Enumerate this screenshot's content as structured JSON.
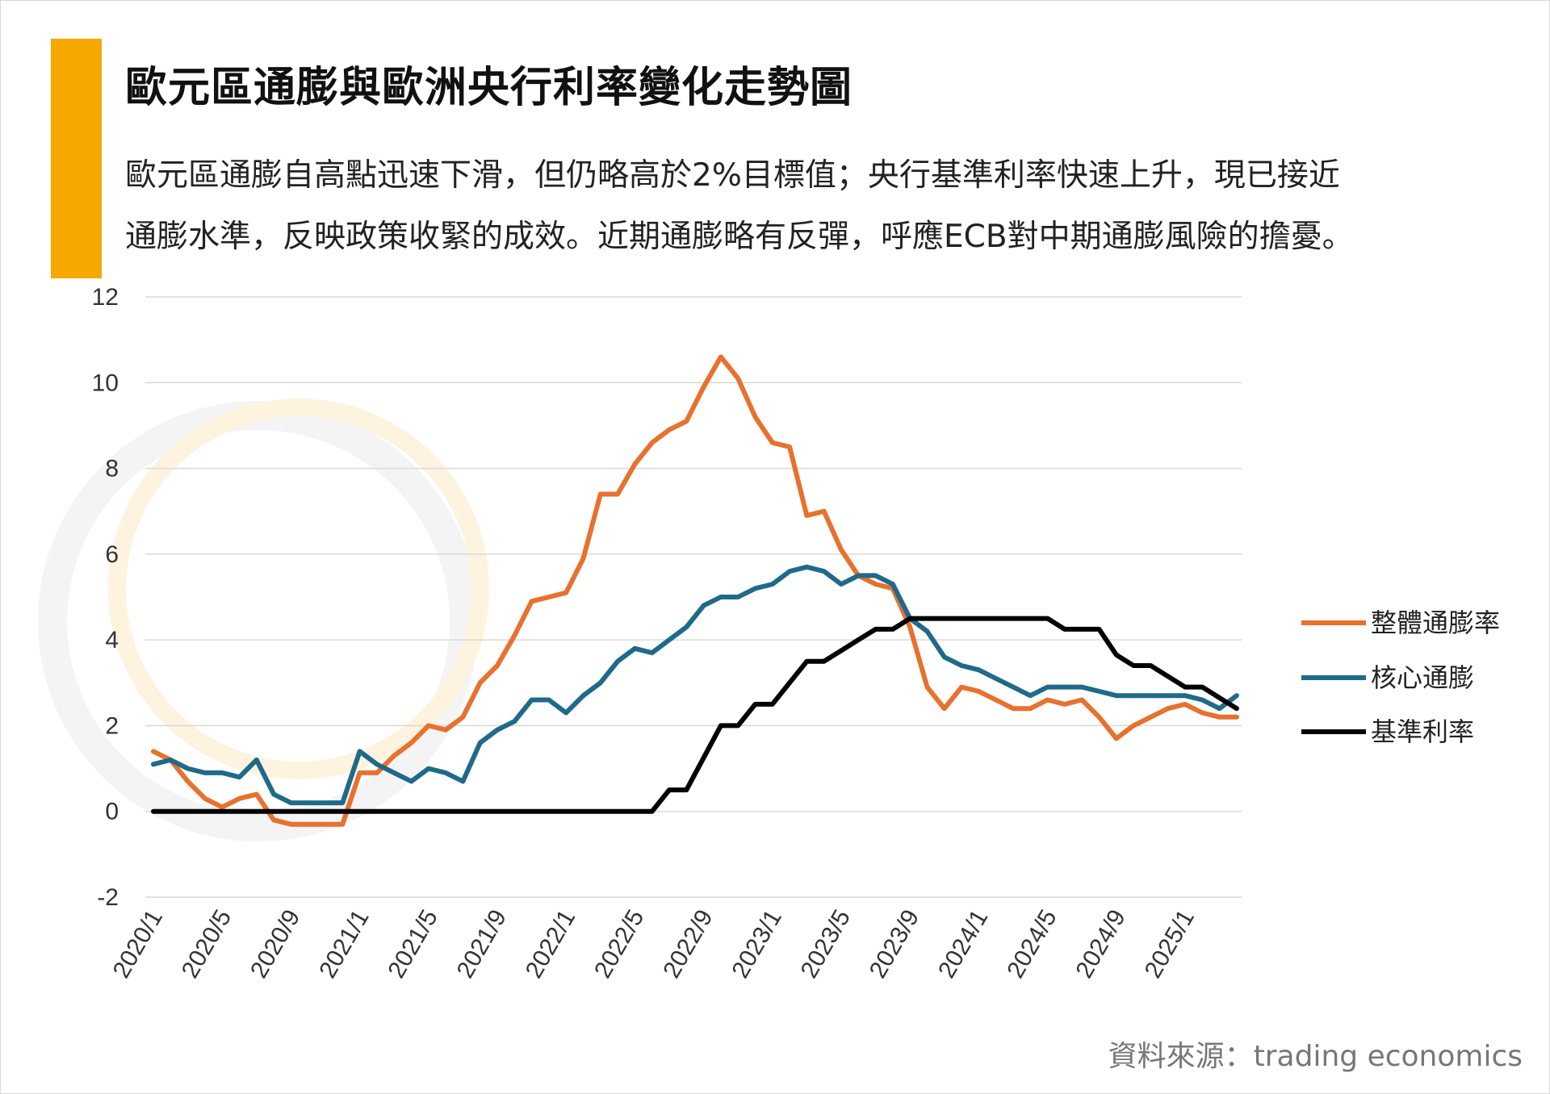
{
  "header": {
    "title": "歐元區通膨與歐洲央行利率變化走勢圖",
    "subtitle_line1": "歐元區通膨自高點迅速下滑，但仍略高於2%目標值；央行基準利率快速上升，現已接近",
    "subtitle_line2": "通膨水準，反映政策收緊的成效。近期通膨略有反彈，呼應ECB對中期通膨風險的擔憂。"
  },
  "source": "資料來源：trading economics",
  "colors": {
    "accent": "#F7A800",
    "headline": "#E8712D",
    "core": "#1F6A8A",
    "rate": "#000000",
    "grid": "#d9d9d9"
  },
  "chart_data": {
    "type": "line",
    "ylim": [
      -2,
      12
    ],
    "yticks": [
      -2,
      0,
      2,
      4,
      6,
      8,
      10,
      12
    ],
    "grid": true,
    "legend_position": "right",
    "x_tick_labels": [
      "2020/1",
      "2020/5",
      "2020/9",
      "2021/1",
      "2021/5",
      "2021/9",
      "2022/1",
      "2022/5",
      "2022/9",
      "2023/1",
      "2023/5",
      "2023/9",
      "2024/1",
      "2024/5",
      "2024/9",
      "2025/1"
    ],
    "x_start": "2020/1",
    "x_end": "2025/6",
    "series": [
      {
        "name": "整體通膨率",
        "color": "#E8712D",
        "values": [
          1.4,
          1.2,
          0.7,
          0.3,
          0.1,
          0.3,
          0.4,
          -0.2,
          -0.3,
          -0.3,
          -0.3,
          -0.3,
          0.9,
          0.9,
          1.3,
          1.6,
          2.0,
          1.9,
          2.2,
          3.0,
          3.4,
          4.1,
          4.9,
          5.0,
          5.1,
          5.9,
          7.4,
          7.4,
          8.1,
          8.6,
          8.9,
          9.1,
          9.9,
          10.6,
          10.1,
          9.2,
          8.6,
          8.5,
          6.9,
          7.0,
          6.1,
          5.5,
          5.3,
          5.2,
          4.3,
          2.9,
          2.4,
          2.9,
          2.8,
          2.6,
          2.4,
          2.4,
          2.6,
          2.5,
          2.6,
          2.2,
          1.7,
          2.0,
          2.2,
          2.4,
          2.5,
          2.3,
          2.2,
          2.2
        ]
      },
      {
        "name": "核心通膨",
        "color": "#1F6A8A",
        "values": [
          1.1,
          1.2,
          1.0,
          0.9,
          0.9,
          0.8,
          1.2,
          0.4,
          0.2,
          0.2,
          0.2,
          0.2,
          1.4,
          1.1,
          0.9,
          0.7,
          1.0,
          0.9,
          0.7,
          1.6,
          1.9,
          2.1,
          2.6,
          2.6,
          2.3,
          2.7,
          3.0,
          3.5,
          3.8,
          3.7,
          4.0,
          4.3,
          4.8,
          5.0,
          5.0,
          5.2,
          5.3,
          5.6,
          5.7,
          5.6,
          5.3,
          5.5,
          5.5,
          5.3,
          4.5,
          4.2,
          3.6,
          3.4,
          3.3,
          3.1,
          2.9,
          2.7,
          2.9,
          2.9,
          2.9,
          2.8,
          2.7,
          2.7,
          2.7,
          2.7,
          2.7,
          2.6,
          2.4,
          2.7
        ]
      },
      {
        "name": "基準利率",
        "color": "#000000",
        "values": [
          0,
          0,
          0,
          0,
          0,
          0,
          0,
          0,
          0,
          0,
          0,
          0,
          0,
          0,
          0,
          0,
          0,
          0,
          0,
          0,
          0,
          0,
          0,
          0,
          0,
          0,
          0,
          0,
          0,
          0,
          0.5,
          0.5,
          1.25,
          2.0,
          2.0,
          2.5,
          2.5,
          3.0,
          3.5,
          3.5,
          3.75,
          4.0,
          4.25,
          4.25,
          4.5,
          4.5,
          4.5,
          4.5,
          4.5,
          4.5,
          4.5,
          4.5,
          4.5,
          4.25,
          4.25,
          4.25,
          3.65,
          3.4,
          3.4,
          3.15,
          2.9,
          2.9,
          2.65,
          2.4
        ]
      }
    ]
  }
}
